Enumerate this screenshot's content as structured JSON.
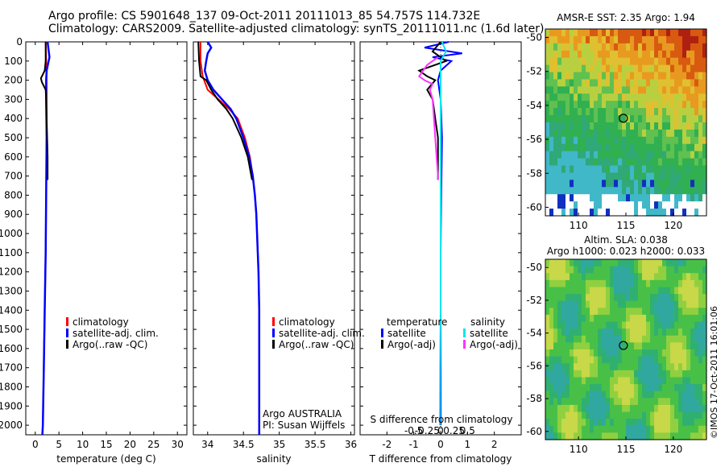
{
  "header": {
    "line1": "Argo profile: CS 5901648_137 09-Oct-2011 20111013_85 54.757S 114.732E",
    "line2": "Climatology: CARS2009. Satellite-adjusted climatology: synTS_20111011.nc (1.6d later)"
  },
  "colors": {
    "climatology": "#ff0000",
    "satellite": "#0000ff",
    "argo": "#000000",
    "sal_satellite": "#00e5ee",
    "sal_argo": "#ff33ff"
  },
  "depth_ticks": [
    0,
    100,
    200,
    300,
    400,
    500,
    600,
    700,
    800,
    900,
    1000,
    1100,
    1200,
    1300,
    1400,
    1500,
    1600,
    1700,
    1800,
    1900,
    2000
  ],
  "panels": {
    "temperature": {
      "xlabel": "temperature (deg C)",
      "xticks": [
        "0",
        "5",
        "10",
        "15",
        "20",
        "25",
        "30"
      ],
      "legend": [
        "climatology",
        "satellite-adj. clim.",
        "Argo(..raw -QC)"
      ]
    },
    "salinity": {
      "xlabel": "salinity",
      "xticks": [
        "34",
        "34.5",
        "35",
        "35.5",
        "36"
      ],
      "legend": [
        "climatology",
        "satellite-adj. clim.",
        "Argo(..raw -QC)"
      ],
      "note1": "Argo AUSTRALIA",
      "note2": "PI: Susan Wijffels"
    },
    "difference": {
      "xlabel": "T difference from climatology",
      "top_label": "S difference from climatology",
      "xticks": [
        "-2",
        "-1",
        "0",
        "1",
        "2"
      ],
      "sticks": [
        "-0.5",
        "-0.25",
        "0",
        "0.25",
        "0.5"
      ],
      "legend_temp_title": "temperature",
      "legend_sal_title": "salinity",
      "legend_temp": [
        "satellite",
        "Argo(-adj)"
      ],
      "legend_sal": [
        "satellite",
        "Argo(-adj)"
      ]
    }
  },
  "maps": {
    "sst": {
      "title": "AMSR-E SST: 2.35 Argo: 1.94",
      "yticks": [
        "-50",
        "-52",
        "-54",
        "-56",
        "-58",
        "-60"
      ],
      "xticks": [
        "110",
        "115",
        "120"
      ]
    },
    "sla": {
      "title1": "Altim. SLA: 0.038",
      "title2": "Argo h1000: 0.023 h2000: 0.033",
      "yticks": [
        "-50",
        "-52",
        "-54",
        "-56",
        "-58",
        "-60"
      ],
      "xticks": [
        "110",
        "115",
        "120"
      ]
    }
  },
  "watermark": "©IMOS 17-Oct-2011 16:01:06",
  "chart_data": [
    {
      "type": "line",
      "title": "",
      "xlabel": "temperature (deg C)",
      "ylabel": "",
      "xlim": [
        -2,
        32
      ],
      "ylim": [
        2050,
        0
      ],
      "series": [
        {
          "name": "climatology",
          "depth": [
            0,
            100,
            200,
            300,
            500,
            800,
            1100,
            1400,
            1700,
            2000,
            2050
          ],
          "values": [
            2.2,
            2.3,
            2.4,
            2.4,
            2.4,
            2.3,
            2.2,
            2.0,
            1.8,
            1.6,
            1.5
          ]
        },
        {
          "name": "satellite-adj. clim.",
          "depth": [
            0,
            40,
            80,
            150,
            200,
            300,
            500,
            800,
            1100,
            1400,
            1700,
            2000,
            2050
          ],
          "values": [
            2.6,
            2.8,
            3.0,
            2.4,
            2.3,
            2.3,
            2.4,
            2.3,
            2.2,
            2.0,
            1.8,
            1.6,
            1.5
          ]
        },
        {
          "name": "Argo(..raw -QC)",
          "depth": [
            0,
            50,
            100,
            150,
            190,
            210,
            250,
            300,
            400,
            500,
            600,
            700,
            720
          ],
          "values": [
            2.2,
            2.2,
            2.2,
            2.0,
            1.2,
            1.4,
            2.2,
            2.3,
            2.4,
            2.5,
            2.6,
            2.6,
            2.6
          ]
        }
      ]
    },
    {
      "type": "line",
      "title": "",
      "xlabel": "salinity",
      "ylabel": "",
      "xlim": [
        33.8,
        36.05
      ],
      "ylim": [
        2050,
        0
      ],
      "series": [
        {
          "name": "climatology",
          "depth": [
            0,
            100,
            180,
            250,
            300,
            350,
            400,
            500,
            600,
            700,
            800,
            900,
            1000,
            1100,
            1200,
            1400,
            1700,
            2000,
            2050
          ],
          "values": [
            33.9,
            33.9,
            33.93,
            34.0,
            34.15,
            34.3,
            34.42,
            34.52,
            34.59,
            34.63,
            34.66,
            34.68,
            34.69,
            34.7,
            34.71,
            34.72,
            34.72,
            34.72,
            34.72
          ]
        },
        {
          "name": "satellite-adj. clim.",
          "depth": [
            0,
            30,
            60,
            100,
            150,
            200,
            250,
            300,
            350,
            400,
            500,
            600,
            700,
            800,
            900,
            1000,
            1100,
            1200,
            1400,
            1700,
            2000,
            2050
          ],
          "values": [
            34.0,
            34.05,
            34.0,
            33.98,
            33.96,
            34.0,
            34.08,
            34.2,
            34.32,
            34.4,
            34.5,
            34.58,
            34.63,
            34.66,
            34.68,
            34.69,
            34.7,
            34.71,
            34.72,
            34.72,
            34.72,
            34.72
          ]
        },
        {
          "name": "Argo(..raw -QC)",
          "depth": [
            0,
            100,
            180,
            200,
            250,
            300,
            350,
            400,
            500,
            600,
            700,
            720
          ],
          "values": [
            33.87,
            33.88,
            33.9,
            33.98,
            34.05,
            34.14,
            34.26,
            34.35,
            34.47,
            34.56,
            34.61,
            34.62
          ]
        }
      ]
    },
    {
      "type": "line",
      "title": "",
      "xlabel": "T difference from climatology",
      "ylabel": "",
      "xlim": [
        -3,
        3
      ],
      "ylim": [
        2050,
        0
      ],
      "series": [
        {
          "name": "temperature satellite",
          "depth": [
            0,
            30,
            60,
            80,
            100,
            150,
            200,
            300,
            500,
            800,
            1100,
            1400,
            1700,
            2000
          ],
          "values": [
            0.3,
            -0.6,
            0.8,
            -0.3,
            0.4,
            0.0,
            -0.1,
            0.0,
            0.05,
            0.02,
            0.0,
            0.0,
            0.0,
            0.0
          ]
        },
        {
          "name": "temperature Argo(-adj)",
          "depth": [
            0,
            50,
            100,
            150,
            180,
            200,
            250,
            300,
            350,
            400,
            500,
            600,
            700,
            720
          ],
          "values": [
            0.0,
            -0.3,
            0.2,
            -0.8,
            -0.5,
            -0.2,
            -0.5,
            -0.3,
            -0.25,
            -0.2,
            -0.1,
            -0.1,
            -0.1,
            -0.1
          ]
        },
        {
          "name": "salinity satellite",
          "depth": [
            0,
            50,
            100,
            200,
            300,
            500,
            800,
            1100,
            1400,
            1700,
            2000
          ],
          "values": [
            0.05,
            0.2,
            0.0,
            0.0,
            0.0,
            0.0,
            0.0,
            0.0,
            0.0,
            -0.02,
            -0.03
          ]
        },
        {
          "name": "salinity Argo(-adj)",
          "depth": [
            80,
            120,
            180,
            200,
            220,
            250,
            300,
            400,
            500,
            600,
            700,
            720
          ],
          "values": [
            -0.1,
            -0.5,
            -0.8,
            -0.6,
            -0.3,
            -0.4,
            -0.3,
            -0.25,
            -0.2,
            -0.15,
            -0.1,
            -0.1
          ]
        }
      ]
    },
    {
      "type": "heatmap",
      "title": "AMSR-E SST: 2.35 Argo: 1.94",
      "xlabel": "",
      "ylabel": "",
      "xlim": [
        106.5,
        123.5
      ],
      "ylim": [
        -60.5,
        -49.5
      ],
      "point": {
        "lon": 114.732,
        "lat": -54.757
      }
    },
    {
      "type": "heatmap",
      "title": "Altim. SLA: 0.038 Argo h1000: 0.023 h2000: 0.033",
      "xlabel": "",
      "ylabel": "",
      "xlim": [
        106.5,
        123.5
      ],
      "ylim": [
        -60.5,
        -49.5
      ],
      "point": {
        "lon": 114.732,
        "lat": -54.757
      }
    }
  ]
}
